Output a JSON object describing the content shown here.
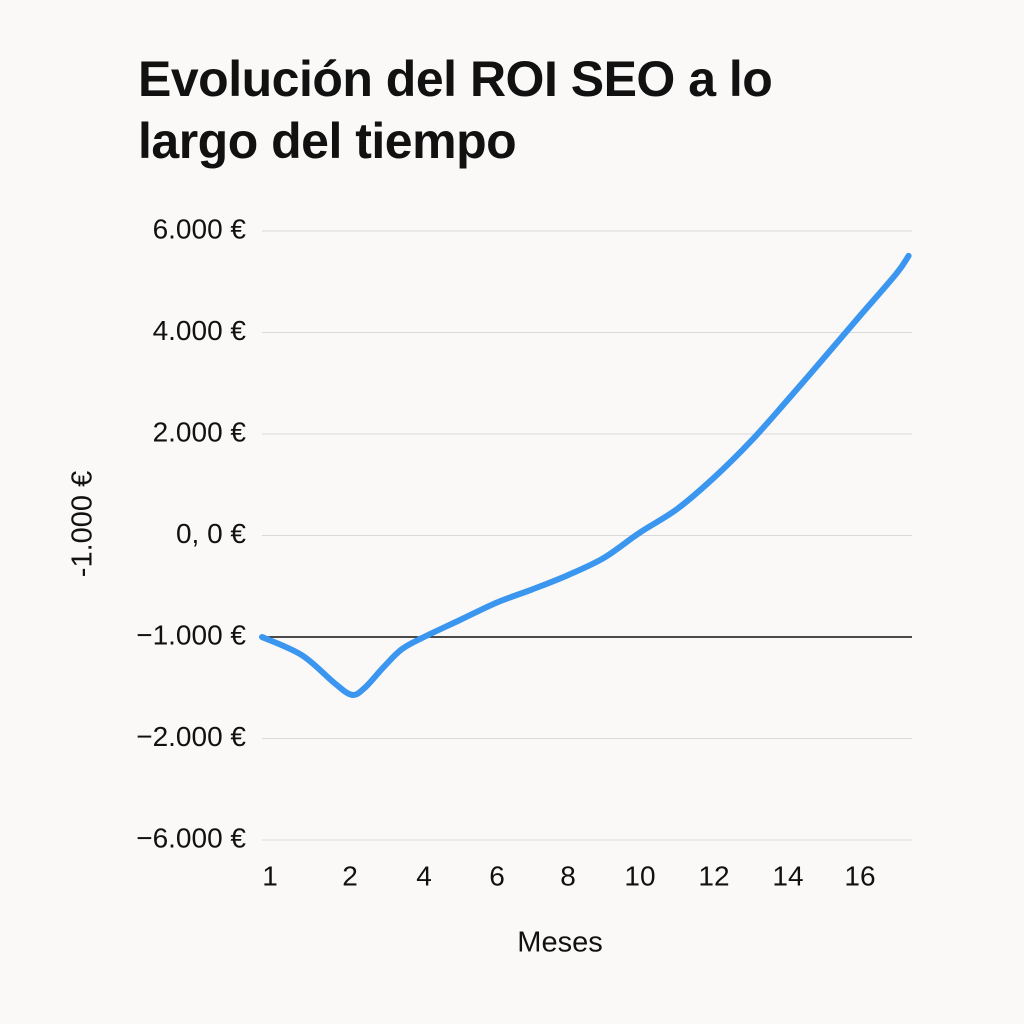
{
  "chart_data": {
    "type": "line",
    "title": "Evolución del ROI SEO a lo largo del tiempo",
    "xlabel": "Meses",
    "ylabel": "-1.000 €",
    "x_ticks": [
      1,
      2,
      4,
      6,
      8,
      10,
      12,
      14,
      16
    ],
    "x_tick_labels": [
      "1",
      "2",
      "4",
      "6",
      "8",
      "10",
      "12",
      "14",
      "16"
    ],
    "y_ticks": [
      6000,
      4000,
      2000,
      0,
      -1000,
      -2000,
      -6000
    ],
    "y_tick_labels": [
      "6.000 €",
      "4.000 €",
      "2.000 €",
      "0, 0 €",
      "−1.000 €",
      "−2.000 €",
      "−6.000 €"
    ],
    "grid": true,
    "reference_line": -1000,
    "line_color": "#3b96f0",
    "grid_color": "#d9d9d9",
    "reference_line_color": "#111111",
    "series": [
      {
        "x": [
          0.9,
          1.4,
          1.8,
          2.05,
          2.4,
          2.9,
          3.4,
          4,
          5,
          6,
          7,
          8,
          9,
          10,
          11,
          12,
          13,
          14,
          15,
          16,
          17,
          17.35
        ],
        "y": [
          -1000,
          -1180,
          -1450,
          -1570,
          -1500,
          -1300,
          -1120,
          -1000,
          -830,
          -660,
          -530,
          -390,
          -220,
          60,
          520,
          1140,
          1860,
          2680,
          3500,
          4330,
          5150,
          5510
        ]
      }
    ]
  }
}
